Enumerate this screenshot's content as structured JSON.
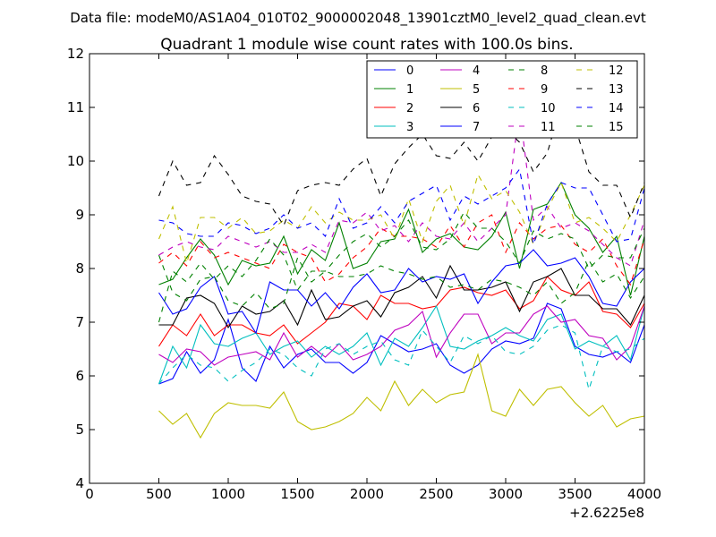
{
  "chart_data": {
    "type": "line",
    "suptitle": "Data file: modeM0/AS1A04_010T02_9000002048_13901cztM0_level2_quad_clean.evt",
    "title": "Quadrant 1 module wise count rates with 100.0s bins.",
    "xlabel": "",
    "ylabel": "",
    "x_offset_label": "+2.6225e8",
    "xlim": [
      0,
      4000
    ],
    "ylim": [
      4,
      12
    ],
    "x_ticks": [
      "0",
      "500",
      "1000",
      "1500",
      "2000",
      "2500",
      "3000",
      "3500",
      "4000"
    ],
    "y_ticks": [
      "4",
      "5",
      "6",
      "7",
      "8",
      "9",
      "10",
      "11",
      "12"
    ],
    "grid": false,
    "legend": {
      "placement": "top-right",
      "columns": 4
    },
    "x": [
      500,
      600,
      700,
      800,
      900,
      1000,
      1100,
      1200,
      1300,
      1400,
      1500,
      1600,
      1700,
      1800,
      1900,
      2000,
      2100,
      2200,
      2300,
      2400,
      2500,
      2600,
      2700,
      2800,
      2900,
      3000,
      3100,
      3200,
      3300,
      3400,
      3500,
      3600,
      3700,
      3800,
      3900,
      4000
    ],
    "series": [
      {
        "name": "0",
        "color": "#0000ff",
        "dash": "solid",
        "values": [
          5.85,
          5.95,
          6.45,
          6.05,
          6.3,
          7.05,
          6.15,
          5.9,
          6.55,
          6.15,
          6.4,
          6.5,
          6.25,
          6.25,
          6.05,
          6.25,
          6.75,
          6.6,
          6.45,
          6.5,
          6.6,
          6.2,
          6.05,
          6.2,
          6.5,
          6.65,
          6.6,
          6.7,
          7.35,
          7.25,
          6.55,
          6.4,
          6.35,
          6.45,
          6.25,
          6.95
        ]
      },
      {
        "name": "1",
        "color": "#008000",
        "dash": "solid",
        "values": [
          7.7,
          7.8,
          8.2,
          8.55,
          8.25,
          7.7,
          8.15,
          8.05,
          8.1,
          8.6,
          7.9,
          8.35,
          8.15,
          8.85,
          8.0,
          8.1,
          8.5,
          8.55,
          9.1,
          8.3,
          8.55,
          8.65,
          8.4,
          8.35,
          8.6,
          9.05,
          8.0,
          9.1,
          9.2,
          9.6,
          9.0,
          8.75,
          8.3,
          8.6,
          7.5,
          8.6
        ]
      },
      {
        "name": "2",
        "color": "#ff0000",
        "dash": "solid",
        "values": [
          6.55,
          6.95,
          6.75,
          7.15,
          6.75,
          6.95,
          6.95,
          6.8,
          6.75,
          6.95,
          6.6,
          6.8,
          7.0,
          7.35,
          7.3,
          7.05,
          7.5,
          7.35,
          7.35,
          7.25,
          7.3,
          7.6,
          7.65,
          7.55,
          7.5,
          7.6,
          7.25,
          7.4,
          7.85,
          7.6,
          7.5,
          7.75,
          7.2,
          7.15,
          6.9,
          7.35
        ]
      },
      {
        "name": "3",
        "color": "#00bfbf",
        "dash": "solid",
        "values": [
          5.85,
          6.55,
          6.15,
          6.95,
          6.6,
          6.55,
          6.7,
          6.8,
          6.4,
          6.55,
          6.65,
          6.35,
          6.55,
          6.4,
          6.55,
          6.8,
          6.2,
          6.7,
          6.55,
          6.9,
          7.3,
          6.55,
          6.5,
          6.65,
          6.75,
          6.9,
          6.75,
          6.65,
          7.05,
          7.15,
          6.5,
          6.65,
          6.55,
          6.75,
          6.3,
          7.3
        ]
      },
      {
        "name": "4",
        "color": "#bf00bf",
        "dash": "solid",
        "values": [
          6.4,
          6.25,
          6.5,
          6.45,
          6.2,
          6.35,
          6.4,
          6.45,
          6.3,
          6.8,
          6.35,
          6.55,
          6.35,
          6.6,
          6.3,
          6.4,
          6.55,
          6.85,
          6.95,
          7.2,
          6.35,
          6.8,
          7.15,
          7.15,
          6.6,
          6.8,
          6.8,
          7.15,
          7.3,
          7.0,
          7.05,
          6.75,
          6.7,
          6.3,
          6.55,
          7.3
        ]
      },
      {
        "name": "5",
        "color": "#bfbf00",
        "dash": "solid",
        "values": [
          5.35,
          5.1,
          5.3,
          4.85,
          5.3,
          5.5,
          5.45,
          5.45,
          5.4,
          5.7,
          5.15,
          5.0,
          5.05,
          5.15,
          5.3,
          5.6,
          5.35,
          5.9,
          5.45,
          5.75,
          5.5,
          5.65,
          5.7,
          6.4,
          5.35,
          5.25,
          5.75,
          5.45,
          5.75,
          5.8,
          5.5,
          5.25,
          5.45,
          5.05,
          5.2,
          5.25
        ]
      },
      {
        "name": "6",
        "color": "#000000",
        "dash": "solid",
        "values": [
          6.95,
          6.95,
          7.45,
          7.5,
          7.35,
          6.9,
          7.3,
          7.15,
          7.2,
          7.4,
          6.95,
          7.6,
          7.05,
          7.1,
          7.3,
          7.4,
          7.1,
          7.55,
          7.65,
          7.85,
          7.45,
          8.05,
          7.6,
          7.6,
          7.65,
          7.75,
          7.2,
          7.75,
          7.85,
          8.0,
          7.5,
          7.5,
          7.25,
          7.25,
          6.95,
          7.5
        ]
      },
      {
        "name": "7",
        "color": "#0000ff",
        "dash": "solid",
        "values": [
          7.55,
          7.15,
          7.25,
          7.65,
          7.85,
          7.15,
          7.2,
          6.8,
          7.75,
          7.6,
          7.6,
          7.3,
          7.55,
          7.25,
          7.65,
          7.9,
          7.55,
          7.6,
          8.0,
          7.75,
          7.85,
          7.8,
          7.9,
          7.35,
          7.75,
          8.05,
          8.1,
          8.35,
          8.05,
          8.1,
          8.2,
          7.85,
          7.35,
          7.3,
          7.75,
          8.0
        ]
      },
      {
        "name": "8",
        "color": "#008000",
        "dash": "dashed",
        "values": [
          8.25,
          7.55,
          7.4,
          7.8,
          7.85,
          7.4,
          7.3,
          7.55,
          7.25,
          7.35,
          8.2,
          7.75,
          7.95,
          7.85,
          7.85,
          7.9,
          8.05,
          7.95,
          7.9,
          7.8,
          7.85,
          7.65,
          7.7,
          7.6,
          7.8,
          7.75,
          7.65,
          7.5,
          7.75,
          7.35,
          7.55,
          8.15,
          7.75,
          7.9,
          7.45,
          7.85
        ]
      },
      {
        "name": "9",
        "color": "#ff0000",
        "dash": "dashed",
        "values": [
          8.1,
          8.3,
          8.05,
          8.5,
          8.2,
          8.3,
          8.2,
          8.1,
          8.0,
          8.45,
          8.3,
          8.2,
          7.75,
          7.9,
          8.2,
          8.4,
          8.75,
          8.6,
          8.6,
          8.55,
          8.4,
          8.8,
          8.4,
          8.85,
          9.0,
          8.3,
          8.85,
          8.55,
          8.75,
          8.8,
          8.45,
          8.3,
          8.55,
          8.05,
          7.7,
          8.55
        ]
      },
      {
        "name": "10",
        "color": "#00bfbf",
        "dash": "dashed",
        "values": [
          5.85,
          6.15,
          6.4,
          6.2,
          6.15,
          5.9,
          6.1,
          6.25,
          6.5,
          6.4,
          6.15,
          6.0,
          6.5,
          6.6,
          6.4,
          6.55,
          6.65,
          6.3,
          6.2,
          6.85,
          6.55,
          6.25,
          6.75,
          6.6,
          6.75,
          6.45,
          6.4,
          6.55,
          6.85,
          6.95,
          6.8,
          5.75,
          6.55,
          6.45,
          6.5,
          6.7
        ]
      },
      {
        "name": "11",
        "color": "#bf00bf",
        "dash": "dashed",
        "values": [
          8.25,
          8.4,
          8.5,
          8.4,
          8.35,
          8.6,
          8.5,
          8.4,
          8.5,
          8.3,
          8.3,
          8.45,
          8.3,
          8.9,
          8.85,
          9.05,
          8.7,
          8.8,
          8.5,
          8.85,
          8.6,
          8.55,
          8.85,
          8.5,
          8.75,
          9.0,
          10.95,
          8.9,
          9.15,
          8.75,
          8.85,
          8.7,
          8.45,
          8.2,
          8.05,
          8.9
        ]
      },
      {
        "name": "12",
        "color": "#bfbf00",
        "dash": "dashed",
        "values": [
          8.55,
          9.15,
          8.1,
          8.95,
          8.95,
          8.75,
          8.95,
          8.65,
          8.7,
          8.9,
          8.75,
          9.15,
          8.85,
          9.05,
          8.9,
          8.9,
          9.0,
          8.55,
          9.3,
          8.5,
          9.25,
          9.55,
          8.8,
          9.75,
          9.3,
          9.45,
          9.05,
          8.45,
          9.1,
          9.6,
          8.85,
          8.95,
          8.75,
          8.5,
          9.0,
          9.55
        ]
      },
      {
        "name": "13",
        "color": "#000000",
        "dash": "dashed",
        "values": [
          9.35,
          10.0,
          9.55,
          9.6,
          10.1,
          9.75,
          9.35,
          9.25,
          9.2,
          8.8,
          9.45,
          9.55,
          9.6,
          9.55,
          9.85,
          10.05,
          9.35,
          9.95,
          10.25,
          10.5,
          10.1,
          10.05,
          10.35,
          10.0,
          10.45,
          10.6,
          10.35,
          9.8,
          10.15,
          11.05,
          10.65,
          9.8,
          9.55,
          9.55,
          8.95,
          9.6
        ]
      },
      {
        "name": "14",
        "color": "#0000ff",
        "dash": "dashed",
        "values": [
          8.9,
          8.85,
          8.65,
          8.6,
          8.6,
          8.85,
          8.8,
          8.65,
          8.75,
          9.0,
          8.75,
          8.85,
          8.6,
          9.3,
          8.75,
          8.85,
          9.15,
          8.85,
          9.25,
          9.4,
          9.55,
          8.9,
          9.35,
          9.2,
          9.35,
          9.5,
          9.85,
          8.45,
          9.2,
          9.6,
          9.5,
          9.5,
          9.0,
          8.5,
          8.55,
          9.5
        ]
      },
      {
        "name": "15",
        "color": "#008000",
        "dash": "dashed",
        "values": [
          7.0,
          7.95,
          7.75,
          8.1,
          7.8,
          8.05,
          7.85,
          8.15,
          8.55,
          8.25,
          7.6,
          7.95,
          7.95,
          8.25,
          8.5,
          8.65,
          8.4,
          8.6,
          8.9,
          8.4,
          8.35,
          8.55,
          9.05,
          8.75,
          8.75,
          8.5,
          8.1,
          8.7,
          8.55,
          8.65,
          8.55,
          8.0,
          8.25,
          8.2,
          8.2,
          8.75
        ]
      }
    ]
  }
}
